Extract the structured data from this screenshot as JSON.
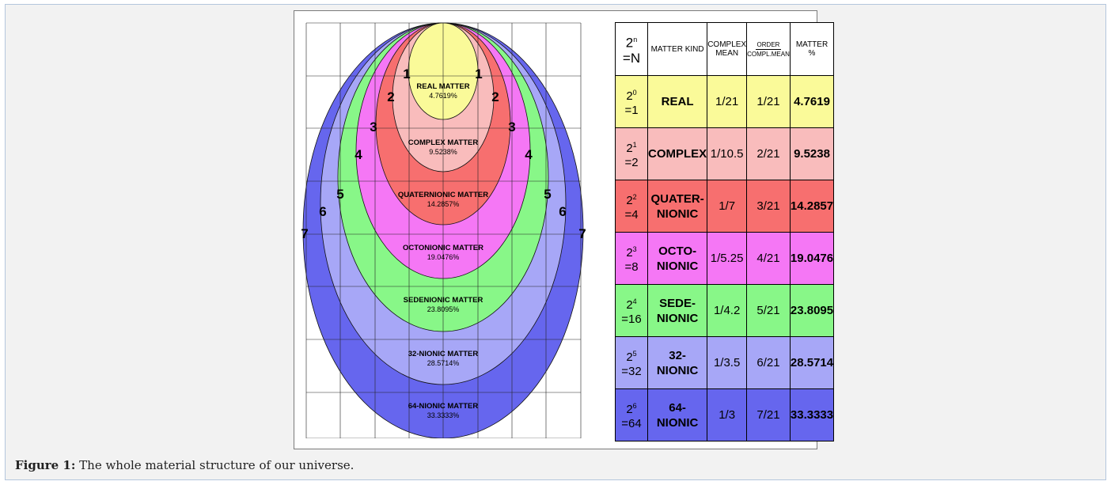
{
  "caption": {
    "label": "Figure 1:",
    "text": " The whole material structure of our universe."
  },
  "diagram": {
    "rings": [
      {
        "name": "64-NIONIC MATTER",
        "pct": "33.3333%",
        "color": "#6666ee",
        "level": "7"
      },
      {
        "name": "32-NIONIC MATTER",
        "pct": "28.5714%",
        "color": "#a7a7f7",
        "level": "6"
      },
      {
        "name": "SEDENIONIC MATTER",
        "pct": "23.8095%",
        "color": "#88f788",
        "level": "5"
      },
      {
        "name": "OCTONIONIC MATTER",
        "pct": "19.0476%",
        "color": "#f577f5",
        "level": "4"
      },
      {
        "name": "QUATERNIONIC MATTER",
        "pct": "14.2857%",
        "color": "#f76f6f",
        "level": "3"
      },
      {
        "name": "COMPLEX MATTER",
        "pct": "9.5238%",
        "color": "#f9bcbc",
        "level": "2"
      },
      {
        "name": "REAL MATTER",
        "pct": "4.7619%",
        "color": "#fafa99",
        "level": "1"
      }
    ]
  },
  "table": {
    "headers": {
      "power_base": "2",
      "power_exp": "n",
      "power_eq": "=N",
      "kind": "MATTER KIND",
      "complex1": "COMPLEX",
      "complex2": "MEAN",
      "order1": "ORDER",
      "order2": "COMPL.MEAN",
      "matter1": "MATTER",
      "matter2": "%"
    },
    "rows": [
      {
        "base": "2",
        "exp": "0",
        "eq": "=1",
        "kind1": "REAL",
        "kind2": "",
        "mean": "1/21",
        "order": "1/21",
        "pct": "4.7619",
        "color": "#fafa99"
      },
      {
        "base": "2",
        "exp": "1",
        "eq": "=2",
        "kind1": "COMPLEX",
        "kind2": "",
        "mean": "1/10.5",
        "order": "2/21",
        "pct": "9.5238",
        "color": "#f9bcbc"
      },
      {
        "base": "2",
        "exp": "2",
        "eq": "=4",
        "kind1": "QUATER-",
        "kind2": "NIONIC",
        "mean": "1/7",
        "order": "3/21",
        "pct": "14.2857",
        "color": "#f76f6f"
      },
      {
        "base": "2",
        "exp": "3",
        "eq": "=8",
        "kind1": "OCTO-",
        "kind2": "NIONIC",
        "mean": "1/5.25",
        "order": "4/21",
        "pct": "19.0476",
        "color": "#f577f5"
      },
      {
        "base": "2",
        "exp": "4",
        "eq": "=16",
        "kind1": "SEDE-",
        "kind2": "NIONIC",
        "mean": "1/4.2",
        "order": "5/21",
        "pct": "23.8095",
        "color": "#88f788"
      },
      {
        "base": "2",
        "exp": "5",
        "eq": "=32",
        "kind1": "32-",
        "kind2": "NIONIC",
        "mean": "1/3.5",
        "order": "6/21",
        "pct": "28.5714",
        "color": "#a7a7f7"
      },
      {
        "base": "2",
        "exp": "6",
        "eq": "=64",
        "kind1": "64-",
        "kind2": "NIONIC",
        "mean": "1/3",
        "order": "7/21",
        "pct": "33.3333",
        "color": "#6666ee"
      }
    ]
  }
}
